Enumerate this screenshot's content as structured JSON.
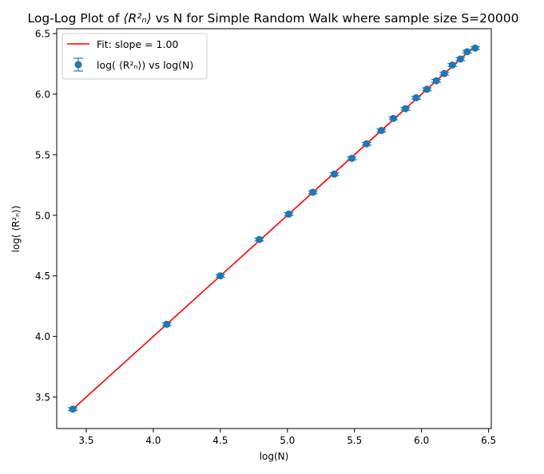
{
  "chart_data": {
    "type": "scatter",
    "title_prefix": "Log-Log Plot of ",
    "title_symbol": "⟨R²ₙ⟩",
    "title_suffix": " vs N for Simple Random Walk where sample size S=20000",
    "xlabel": "log(N)",
    "ylabel": "log( ⟨R²ₙ⟩)",
    "xlim": [
      3.28,
      6.52
    ],
    "ylim": [
      3.24,
      6.54
    ],
    "xticks": [
      3.5,
      4.0,
      4.5,
      5.0,
      5.5,
      6.0,
      6.5
    ],
    "yticks": [
      3.5,
      4.0,
      4.5,
      5.0,
      5.5,
      6.0,
      6.5
    ],
    "grid": false,
    "legend_position": "top-left",
    "legend": {
      "fit_label": "Fit: slope = 1.00",
      "data_label": "log( ⟨R²ₙ⟩) vs log(N)"
    },
    "fit": {
      "slope": 1.0,
      "intercept": 0.0,
      "x_range": [
        3.4,
        6.4
      ],
      "color": "#ff0000"
    },
    "series": [
      {
        "color": "#1f77b4",
        "x": [
          3.4,
          4.1,
          4.5,
          4.79,
          5.01,
          5.19,
          5.35,
          5.48,
          5.59,
          5.7,
          5.79,
          5.88,
          5.96,
          6.04,
          6.11,
          6.17,
          6.23,
          6.29,
          6.34,
          6.4
        ],
        "y": [
          3.4,
          4.1,
          4.5,
          4.8,
          5.01,
          5.19,
          5.34,
          5.47,
          5.59,
          5.7,
          5.8,
          5.88,
          5.97,
          6.04,
          6.11,
          6.17,
          6.24,
          6.29,
          6.35,
          6.38
        ],
        "yerr": [
          0.012,
          0.012,
          0.012,
          0.012,
          0.012,
          0.012,
          0.012,
          0.012,
          0.012,
          0.012,
          0.012,
          0.012,
          0.012,
          0.012,
          0.012,
          0.012,
          0.012,
          0.012,
          0.012,
          0.012
        ]
      }
    ]
  }
}
